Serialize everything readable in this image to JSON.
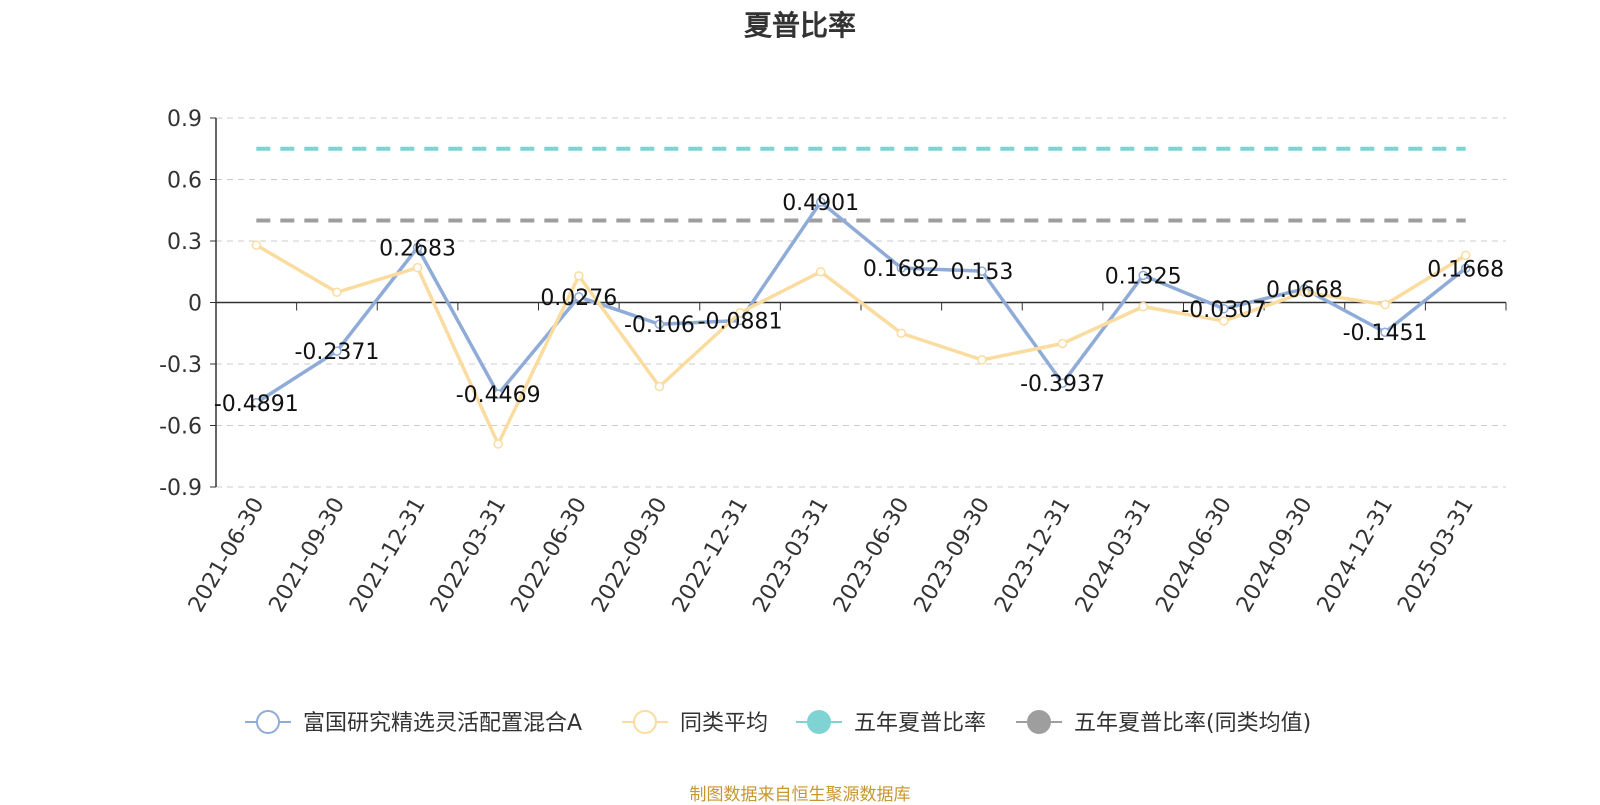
{
  "chart_data": {
    "type": "line",
    "title": "夏普比率",
    "categories": [
      "2021-06-30",
      "2021-09-30",
      "2021-12-31",
      "2022-03-31",
      "2022-06-30",
      "2022-09-30",
      "2022-12-31",
      "2023-03-31",
      "2023-06-30",
      "2023-09-30",
      "2023-12-31",
      "2024-03-31",
      "2024-06-30",
      "2024-09-30",
      "2024-12-31",
      "2025-03-31"
    ],
    "y_ticks": [
      "0.9",
      "0.6",
      "0.3",
      "0",
      "-0.3",
      "-0.6",
      "-0.9"
    ],
    "ylim": [
      -0.9,
      0.9
    ],
    "grid": "horizontal dashed",
    "legend_position": "bottom",
    "series": [
      {
        "name": "富国研究精选灵活配置混合A",
        "color": "#8fabd8",
        "values": [
          -0.4891,
          -0.2371,
          0.2683,
          -0.4469,
          0.0276,
          -0.106,
          -0.0881,
          0.4901,
          0.1682,
          0.153,
          -0.3937,
          0.1325,
          -0.0307,
          0.0668,
          -0.1451,
          0.1668
        ],
        "labels": [
          "-0.4891",
          "-0.2371",
          "0.2683",
          "-0.4469",
          "0.0276",
          "-0.106",
          "-0.0881",
          "0.4901",
          "0.1682",
          "0.153",
          "-0.3937",
          "0.1325",
          "-0.0307",
          "0.0668",
          "-0.1451",
          "0.1668"
        ]
      },
      {
        "name": "同类平均",
        "color": "#fbdca0",
        "values": [
          0.28,
          0.05,
          0.17,
          -0.69,
          0.13,
          -0.41,
          -0.05,
          0.15,
          -0.15,
          -0.28,
          -0.2,
          -0.02,
          -0.09,
          0.05,
          -0.01,
          0.23
        ]
      },
      {
        "name": "五年夏普比率",
        "color": "#7fd3d3",
        "style": "dashed-horizontal",
        "value": 0.75
      },
      {
        "name": "五年夏普比率(同类均值)",
        "color": "#9e9e9e",
        "style": "dashed-horizontal",
        "value": 0.4
      }
    ]
  },
  "footer": {
    "source": "制图数据来自恒生聚源数据库"
  }
}
